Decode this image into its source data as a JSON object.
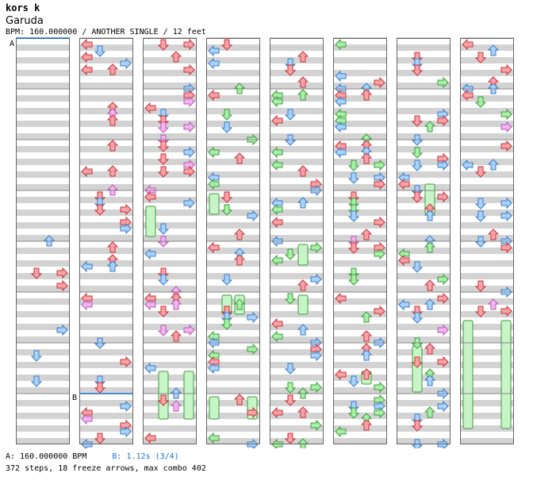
{
  "song": {
    "artist": "kors k",
    "title": "Garuda",
    "meta": "BPM: 160.000000 / ANOTHER SINGLE / 12 feet"
  },
  "markers": {
    "a_label": "A",
    "b_label": "B"
  },
  "footer": {
    "bpm_a": "A: 160.000000 BPM",
    "bpm_b": "B: 1.12s (3/4)",
    "stats": "372 steps, 18 freeze arrows, max combo 402"
  },
  "colors": {
    "quarter": "#f9a3a9",
    "quarter_stroke": "#c83238",
    "eighth": "#a9d2ff",
    "eighth_stroke": "#3a7cc4",
    "sixteenth": "#f5b4f0",
    "sixteenth_stroke": "#b45ab4",
    "twelfth": "#a7f0a7",
    "twelfth_stroke": "#3c9a3c",
    "freeze": "#c8f5c8",
    "freeze_stroke": "#3c9a3c",
    "stripe": "#d3d3d3",
    "marker": "#1a6fd0"
  },
  "chart_data": {
    "type": "step-chart",
    "mode": "ANOTHER SINGLE",
    "bpm": 160,
    "difficulty_feet": 12,
    "lanes": [
      "left",
      "down",
      "up",
      "right"
    ],
    "measures_per_column": 8,
    "columns": 8,
    "freeze_count": 18,
    "step_count": 372,
    "max_combo": 402
  }
}
